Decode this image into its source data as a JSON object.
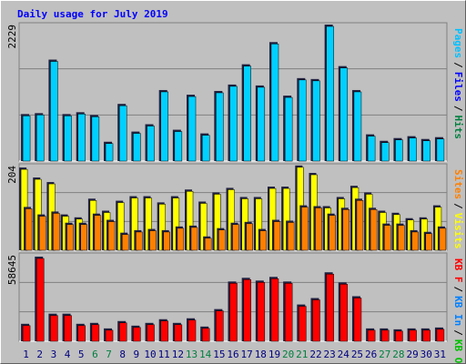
{
  "chart_data": {
    "type": "bar",
    "title": "Daily usage for July 2019",
    "categories": [
      "1",
      "2",
      "3",
      "4",
      "5",
      "6",
      "7",
      "8",
      "9",
      "10",
      "11",
      "12",
      "13",
      "14",
      "15",
      "16",
      "17",
      "18",
      "19",
      "20",
      "21",
      "22",
      "23",
      "24",
      "25",
      "26",
      "27",
      "28",
      "29",
      "30",
      "31"
    ],
    "category_colors": [
      "#000080",
      "#000080",
      "#000080",
      "#000080",
      "#000080",
      "#008040",
      "#008040",
      "#000080",
      "#000080",
      "#000080",
      "#000080",
      "#000080",
      "#008040",
      "#008040",
      "#000080",
      "#000080",
      "#000080",
      "#000080",
      "#000080",
      "#008040",
      "#008040",
      "#000080",
      "#000080",
      "#000080",
      "#000080",
      "#000080",
      "#008040",
      "#008040",
      "#000080",
      "#000080",
      "#000080"
    ],
    "legend_separator": "/",
    "panels": [
      {
        "ylim": [
          0,
          2229
        ],
        "yticks": [
          2229
        ],
        "legend": [
          {
            "label": "Pages",
            "color": "#00c0ff"
          },
          {
            "label": "Files",
            "color": "#0000ff"
          },
          {
            "label": "Hits",
            "color": "#008040"
          }
        ],
        "series": [
          {
            "name": "Pages",
            "color": "#00d0ff",
            "values": [
              738,
              753,
              1627,
              738,
              768,
              723,
              286,
              904,
              452,
              572,
              1130,
              482,
              1054,
              422,
              1115,
              1220,
              1551,
              1205,
              1913,
              1039,
              1325,
              1310,
              2199,
              1521,
              1130,
              407,
              301,
              346,
              377,
              331,
              361
            ]
          }
        ]
      },
      {
        "ylim": [
          0,
          204
        ],
        "yticks": [
          204
        ],
        "legend": [
          {
            "label": "Sites",
            "color": "#ff8000"
          },
          {
            "label": "Visits",
            "color": "#ffff00"
          }
        ],
        "series": [
          {
            "name": "Visits",
            "color": "#ffff00",
            "values": [
              195,
              171,
              160,
              82,
              75,
              120,
              91,
              115,
              126,
              126,
              111,
              126,
              142,
              113,
              135,
              146,
              124,
              124,
              149,
              149,
              200,
              182,
              102,
              124,
              151,
              135,
              91,
              86,
              73,
              75,
              104
            ]
          },
          {
            "name": "Sites",
            "color": "#ff8000",
            "values": [
              100,
              82,
              89,
              62,
              62,
              84,
              69,
              38,
              44,
              47,
              44,
              53,
              55,
              29,
              49,
              62,
              64,
              47,
              69,
              67,
              104,
              102,
              84,
              98,
              120,
              98,
              60,
              60,
              44,
              40,
              53
            ]
          }
        ]
      },
      {
        "ylim": [
          0,
          58645
        ],
        "yticks": [
          58645
        ],
        "legend": [
          {
            "label": "KB F",
            "color": "#ff0000"
          },
          {
            "label": "KB In",
            "color": "#0080ff"
          },
          {
            "label": "KB Out",
            "color": "#00c000"
          }
        ],
        "series": [
          {
            "name": "KB F",
            "color": "#ff0000",
            "values": [
              10606,
              56150,
              17469,
              17469,
              10606,
              11230,
              7487,
              12478,
              9358,
              11230,
              13726,
              11230,
              14350,
              8735,
              20588,
              39305,
              41800,
              39929,
              42424,
              39305,
              23708,
              28075,
              45544,
              38681,
              29323,
              7487,
              7487,
              6863,
              7487,
              7487,
              8111
            ]
          }
        ]
      }
    ]
  }
}
